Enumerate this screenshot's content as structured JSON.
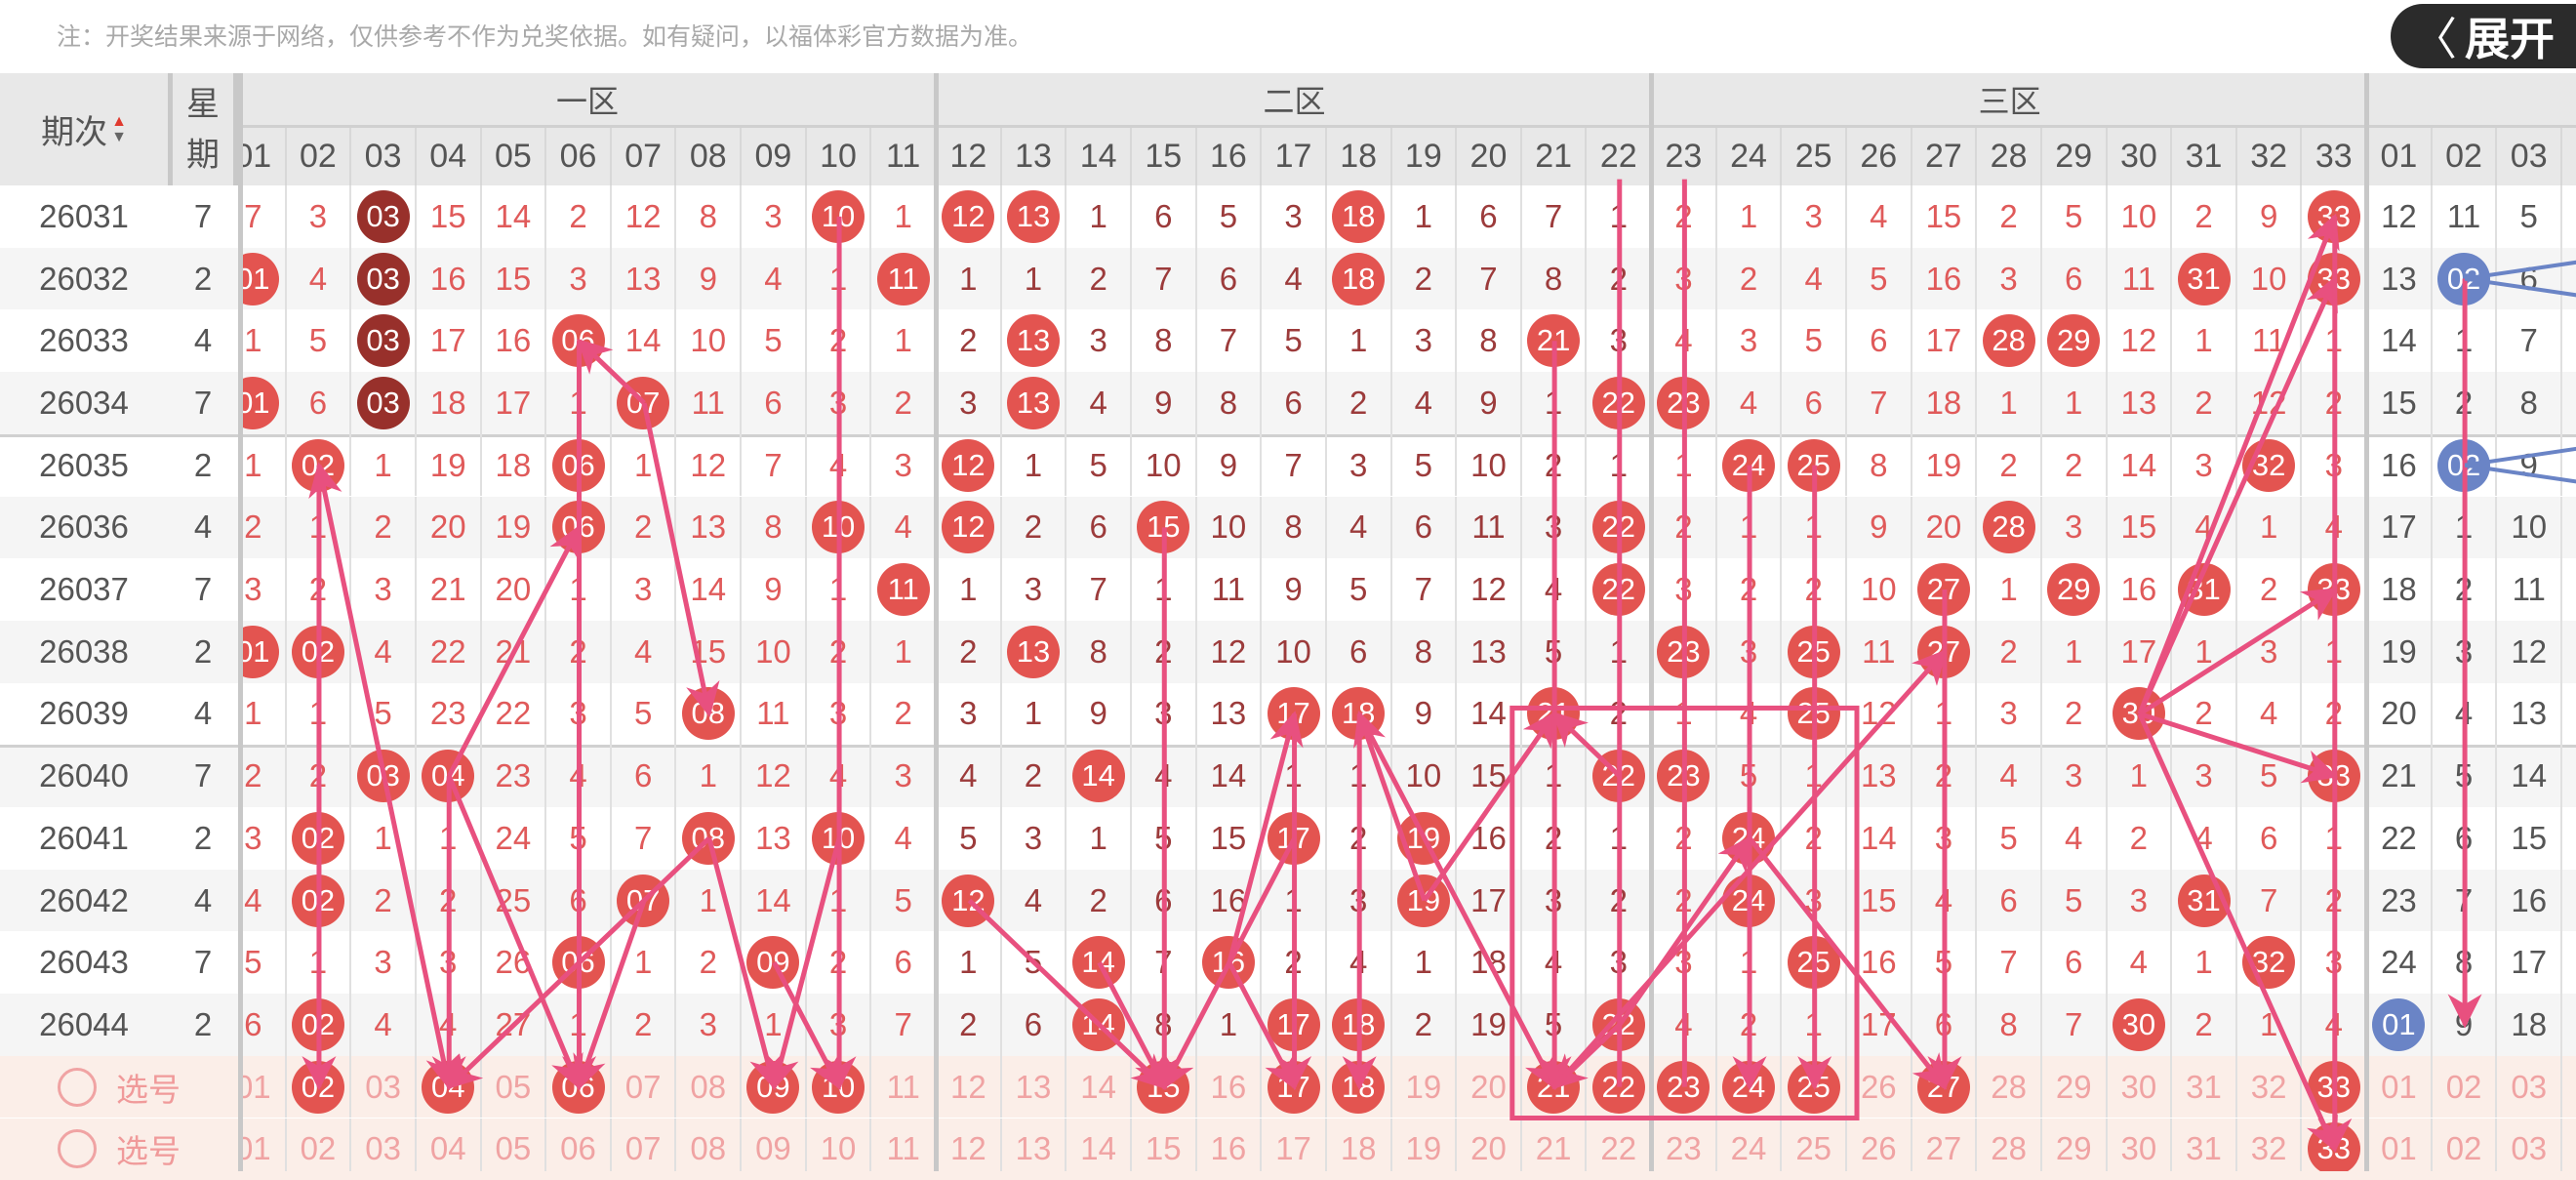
{
  "note": "注：开奖结果来源于网络，仅供参考不作为兑奖依据。如有疑问，以福体彩官方数据为准。",
  "header": {
    "period": "期次",
    "week_top": "星",
    "week_bottom": "期",
    "sort_up": "▲",
    "sort_down": "▼",
    "zones": [
      "一区",
      "二区",
      "三区",
      ""
    ],
    "zone1_cols": [
      "01",
      "02",
      "03",
      "04",
      "05",
      "06",
      "07",
      "08",
      "09",
      "10",
      "11"
    ],
    "zone2_cols": [
      "12",
      "13",
      "14",
      "15",
      "16",
      "17",
      "18",
      "19",
      "20",
      "21",
      "22"
    ],
    "zone3_cols": [
      "23",
      "24",
      "25",
      "26",
      "27",
      "28",
      "29",
      "30",
      "31",
      "32",
      "33"
    ],
    "blue_cols": [
      "01",
      "02",
      "03"
    ]
  },
  "colors": {
    "red_ball": "#e35450",
    "repeat_ball": "#98302b",
    "blue_ball": "#6a84c6",
    "trend_line": "#e8507f"
  },
  "rows": [
    {
      "period": "26031",
      "week": "7",
      "z1": [
        "7",
        "3",
        {
          "v": "03",
          "c": "dark"
        },
        "15",
        "14",
        "2",
        "12",
        "8",
        "3",
        {
          "v": "10",
          "c": "red"
        },
        "1"
      ],
      "z2": [
        {
          "v": "12",
          "c": "red"
        },
        {
          "v": "13",
          "c": "red"
        },
        "1",
        "6",
        "5",
        "3",
        {
          "v": "18",
          "c": "red"
        },
        "1",
        "6",
        "7",
        "1"
      ],
      "z3": [
        "2",
        "1",
        "3",
        "4",
        "15",
        "2",
        "5",
        "10",
        "2",
        "9",
        {
          "v": "33",
          "c": "red"
        }
      ],
      "blue": [
        "12",
        "11",
        "5"
      ]
    },
    {
      "period": "26032",
      "week": "2",
      "z1": [
        {
          "v": "01",
          "c": "red"
        },
        "4",
        {
          "v": "03",
          "c": "dark"
        },
        "16",
        "15",
        "3",
        "13",
        "9",
        "4",
        "1",
        {
          "v": "11",
          "c": "red"
        }
      ],
      "z2": [
        "1",
        "1",
        "2",
        "7",
        "6",
        "4",
        {
          "v": "18",
          "c": "red"
        },
        "2",
        "7",
        "8",
        "2"
      ],
      "z3": [
        "3",
        "2",
        "4",
        "5",
        "16",
        "3",
        "6",
        "11",
        {
          "v": "31",
          "c": "red"
        },
        "10",
        {
          "v": "33",
          "c": "red"
        }
      ],
      "blue": [
        "13",
        {
          "v": "02",
          "c": "blue"
        },
        "6"
      ]
    },
    {
      "period": "26033",
      "week": "4",
      "z1": [
        "1",
        "5",
        {
          "v": "03",
          "c": "dark"
        },
        "17",
        "16",
        {
          "v": "06",
          "c": "red"
        },
        "14",
        "10",
        "5",
        "2",
        "1"
      ],
      "z2": [
        "2",
        {
          "v": "13",
          "c": "red"
        },
        "3",
        "8",
        "7",
        "5",
        "1",
        "3",
        "8",
        {
          "v": "21",
          "c": "red"
        },
        "3"
      ],
      "z3": [
        "4",
        "3",
        "5",
        "6",
        "17",
        {
          "v": "28",
          "c": "red"
        },
        {
          "v": "29",
          "c": "red"
        },
        "12",
        "1",
        "11",
        "1"
      ],
      "blue": [
        "14",
        "1",
        "7"
      ]
    },
    {
      "period": "26034",
      "week": "7",
      "z1": [
        {
          "v": "01",
          "c": "red"
        },
        "6",
        {
          "v": "03",
          "c": "dark"
        },
        "18",
        "17",
        "1",
        {
          "v": "07",
          "c": "red"
        },
        "11",
        "6",
        "3",
        "2"
      ],
      "z2": [
        "3",
        {
          "v": "13",
          "c": "red"
        },
        "4",
        "9",
        "8",
        "6",
        "2",
        "4",
        "9",
        "1",
        {
          "v": "22",
          "c": "red"
        }
      ],
      "z3": [
        {
          "v": "23",
          "c": "red"
        },
        "4",
        "6",
        "7",
        "18",
        "1",
        "1",
        "13",
        "2",
        "12",
        "2"
      ],
      "blue": [
        "15",
        "2",
        "8"
      ]
    },
    {
      "period": "26035",
      "week": "2",
      "z1": [
        "1",
        {
          "v": "02",
          "c": "red"
        },
        "1",
        "19",
        "18",
        {
          "v": "06",
          "c": "red"
        },
        "1",
        "12",
        "7",
        "4",
        "3"
      ],
      "z2": [
        {
          "v": "12",
          "c": "red"
        },
        "1",
        "5",
        "10",
        "9",
        "7",
        "3",
        "5",
        "10",
        "2",
        "1"
      ],
      "z3": [
        "1",
        {
          "v": "24",
          "c": "red"
        },
        {
          "v": "25",
          "c": "red"
        },
        "8",
        "19",
        "2",
        "2",
        "14",
        "3",
        {
          "v": "32",
          "c": "red"
        },
        "3"
      ],
      "blue": [
        "16",
        {
          "v": "02",
          "c": "blue"
        },
        "9"
      ]
    },
    {
      "period": "26036",
      "week": "4",
      "z1": [
        "2",
        "1",
        "2",
        "20",
        "19",
        {
          "v": "06",
          "c": "red"
        },
        "2",
        "13",
        "8",
        {
          "v": "10",
          "c": "red"
        },
        "4"
      ],
      "z2": [
        {
          "v": "12",
          "c": "red"
        },
        "2",
        "6",
        {
          "v": "15",
          "c": "red"
        },
        "10",
        "8",
        "4",
        "6",
        "11",
        "3",
        {
          "v": "22",
          "c": "red"
        }
      ],
      "z3": [
        "2",
        "1",
        "1",
        "9",
        "20",
        {
          "v": "28",
          "c": "red"
        },
        "3",
        "15",
        "4",
        "1",
        "4"
      ],
      "blue": [
        "17",
        "1",
        "10"
      ]
    },
    {
      "period": "26037",
      "week": "7",
      "z1": [
        "3",
        "2",
        "3",
        "21",
        "20",
        "1",
        "3",
        "14",
        "9",
        "1",
        {
          "v": "11",
          "c": "red"
        }
      ],
      "z2": [
        "1",
        "3",
        "7",
        "1",
        "11",
        "9",
        "5",
        "7",
        "12",
        "4",
        {
          "v": "22",
          "c": "red"
        }
      ],
      "z3": [
        "3",
        "2",
        "2",
        "10",
        {
          "v": "27",
          "c": "red"
        },
        "1",
        {
          "v": "29",
          "c": "red"
        },
        "16",
        {
          "v": "31",
          "c": "red"
        },
        "2",
        {
          "v": "33",
          "c": "red"
        }
      ],
      "blue": [
        "18",
        "2",
        "11"
      ]
    },
    {
      "period": "26038",
      "week": "2",
      "z1": [
        {
          "v": "01",
          "c": "red"
        },
        {
          "v": "02",
          "c": "red"
        },
        "4",
        "22",
        "21",
        "2",
        "4",
        "15",
        "10",
        "2",
        "1"
      ],
      "z2": [
        "2",
        {
          "v": "13",
          "c": "red"
        },
        "8",
        "2",
        "12",
        "10",
        "6",
        "8",
        "13",
        "5",
        "1"
      ],
      "z3": [
        {
          "v": "23",
          "c": "red"
        },
        "3",
        {
          "v": "25",
          "c": "red"
        },
        "11",
        {
          "v": "27",
          "c": "red"
        },
        "2",
        "1",
        "17",
        "1",
        "3",
        "1"
      ],
      "blue": [
        "19",
        "3",
        "12"
      ]
    },
    {
      "period": "26039",
      "week": "4",
      "z1": [
        "1",
        "1",
        "5",
        "23",
        "22",
        "3",
        "5",
        {
          "v": "08",
          "c": "red"
        },
        "11",
        "3",
        "2"
      ],
      "z2": [
        "3",
        "1",
        "9",
        "3",
        "13",
        {
          "v": "17",
          "c": "red"
        },
        {
          "v": "18",
          "c": "red"
        },
        "9",
        "14",
        {
          "v": "21",
          "c": "red"
        },
        "2"
      ],
      "z3": [
        "1",
        "4",
        {
          "v": "25",
          "c": "red"
        },
        "12",
        "1",
        "3",
        "2",
        {
          "v": "30",
          "c": "red"
        },
        "2",
        "4",
        "2"
      ],
      "blue": [
        "20",
        "4",
        "13"
      ]
    },
    {
      "period": "26040",
      "week": "7",
      "z1": [
        "2",
        "2",
        {
          "v": "03",
          "c": "red"
        },
        {
          "v": "04",
          "c": "red"
        },
        "23",
        "4",
        "6",
        "1",
        "12",
        "4",
        "3"
      ],
      "z2": [
        "4",
        "2",
        {
          "v": "14",
          "c": "red"
        },
        "4",
        "14",
        "1",
        "1",
        "10",
        "15",
        "1",
        {
          "v": "22",
          "c": "red"
        }
      ],
      "z3": [
        {
          "v": "23",
          "c": "red"
        },
        "5",
        "1",
        "13",
        "2",
        "4",
        "3",
        "1",
        "3",
        "5",
        {
          "v": "33",
          "c": "red"
        }
      ],
      "blue": [
        "21",
        "5",
        "14"
      ]
    },
    {
      "period": "26041",
      "week": "2",
      "z1": [
        "3",
        {
          "v": "02",
          "c": "red"
        },
        "1",
        "1",
        "24",
        "5",
        "7",
        {
          "v": "08",
          "c": "red"
        },
        "13",
        {
          "v": "10",
          "c": "red"
        },
        "4"
      ],
      "z2": [
        "5",
        "3",
        "1",
        "5",
        "15",
        {
          "v": "17",
          "c": "red"
        },
        "2",
        {
          "v": "19",
          "c": "red"
        },
        "16",
        "2",
        "1"
      ],
      "z3": [
        "2",
        {
          "v": "24",
          "c": "red"
        },
        "2",
        "14",
        "3",
        "5",
        "4",
        "2",
        "4",
        "6",
        "1"
      ],
      "blue": [
        "22",
        "6",
        "15"
      ]
    },
    {
      "period": "26042",
      "week": "4",
      "z1": [
        "4",
        {
          "v": "02",
          "c": "red"
        },
        "2",
        "2",
        "25",
        "6",
        {
          "v": "07",
          "c": "red"
        },
        "1",
        "14",
        "1",
        "5"
      ],
      "z2": [
        {
          "v": "12",
          "c": "red"
        },
        "4",
        "2",
        "6",
        "16",
        "1",
        "3",
        {
          "v": "19",
          "c": "red"
        },
        "17",
        "3",
        "2"
      ],
      "z3": [
        "2",
        {
          "v": "24",
          "c": "red"
        },
        "3",
        "15",
        "4",
        "6",
        "5",
        "3",
        {
          "v": "31",
          "c": "red"
        },
        "7",
        "2"
      ],
      "blue": [
        "23",
        "7",
        "16"
      ]
    },
    {
      "period": "26043",
      "week": "7",
      "z1": [
        "5",
        "1",
        "3",
        "3",
        "26",
        {
          "v": "06",
          "c": "red"
        },
        "1",
        "2",
        {
          "v": "09",
          "c": "red"
        },
        "2",
        "6"
      ],
      "z2": [
        "1",
        "5",
        {
          "v": "14",
          "c": "red"
        },
        "7",
        {
          "v": "16",
          "c": "red"
        },
        "2",
        "4",
        "1",
        "18",
        "4",
        "3"
      ],
      "z3": [
        "3",
        "1",
        {
          "v": "25",
          "c": "red"
        },
        "16",
        "5",
        "7",
        "6",
        "4",
        "1",
        {
          "v": "32",
          "c": "red"
        },
        "3"
      ],
      "blue": [
        "24",
        "8",
        "17"
      ]
    },
    {
      "period": "26044",
      "week": "2",
      "z1": [
        "6",
        {
          "v": "02",
          "c": "red"
        },
        "4",
        "4",
        "27",
        "1",
        "2",
        "3",
        "1",
        "3",
        "7"
      ],
      "z2": [
        "2",
        "6",
        {
          "v": "14",
          "c": "red"
        },
        "8",
        "1",
        {
          "v": "17",
          "c": "red"
        },
        {
          "v": "18",
          "c": "red"
        },
        "2",
        "19",
        "5",
        {
          "v": "22",
          "c": "red"
        }
      ],
      "z3": [
        "4",
        "2",
        "1",
        "17",
        "6",
        "8",
        "7",
        {
          "v": "30",
          "c": "red"
        },
        "2",
        "1",
        "4"
      ],
      "blue": [
        {
          "v": "01",
          "c": "blue"
        },
        "9",
        "18"
      ]
    }
  ],
  "selection_rows": [
    {
      "label": "选号",
      "selected": [
        "02",
        "04",
        "06",
        "09",
        "10",
        "15",
        "17",
        "18",
        "21",
        "22",
        "23",
        "24",
        "25",
        "27",
        "33"
      ]
    },
    {
      "label": "选号",
      "selected": [
        "33"
      ]
    }
  ],
  "expand_button": {
    "label": "展开",
    "icon": "chevron-left-icon"
  }
}
